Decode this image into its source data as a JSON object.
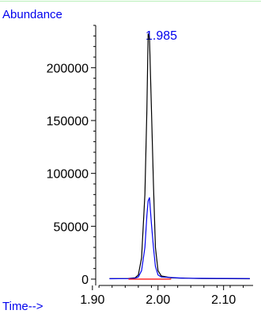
{
  "chart_data": {
    "type": "line",
    "ylabel": "Abundance",
    "xlabel": "Time-->",
    "peak_label": "1.985",
    "xlim": [
      1.905,
      2.145
    ],
    "ylim": [
      0,
      240000
    ],
    "x_ticks": [
      1.9,
      2.0,
      2.1
    ],
    "x_tick_labels": [
      "1.90",
      "2.00",
      "2.10"
    ],
    "y_ticks": [
      0,
      50000,
      100000,
      150000,
      200000
    ],
    "y_tick_labels": [
      "0",
      "50000",
      "100000",
      "150000",
      "200000"
    ],
    "x_minor_step": 0.02,
    "y_minor_step": 10000,
    "series": [
      {
        "color": "#000000",
        "points": [
          [
            1.926,
            500
          ],
          [
            1.955,
            600
          ],
          [
            1.965,
            1200
          ],
          [
            1.97,
            4000
          ],
          [
            1.975,
            20000
          ],
          [
            1.98,
            80000
          ],
          [
            1.983,
            160000
          ],
          [
            1.985,
            232000
          ],
          [
            1.987,
            228000
          ],
          [
            1.99,
            160000
          ],
          [
            1.993,
            90000
          ],
          [
            1.996,
            30000
          ],
          [
            2.0,
            8000
          ],
          [
            2.005,
            3000
          ],
          [
            2.02,
            1200
          ],
          [
            2.06,
            600
          ],
          [
            2.14,
            400
          ]
        ]
      },
      {
        "color": "#0000ee",
        "points": [
          [
            1.926,
            400
          ],
          [
            1.955,
            500
          ],
          [
            1.965,
            900
          ],
          [
            1.97,
            2000
          ],
          [
            1.975,
            8000
          ],
          [
            1.98,
            30000
          ],
          [
            1.983,
            60000
          ],
          [
            1.985,
            74000
          ],
          [
            1.987,
            77000
          ],
          [
            1.99,
            52000
          ],
          [
            1.993,
            30000
          ],
          [
            1.996,
            12000
          ],
          [
            2.0,
            4000
          ],
          [
            2.005,
            2000
          ],
          [
            2.04,
            800
          ],
          [
            2.14,
            500
          ]
        ]
      },
      {
        "color": "#ff0000",
        "points": [
          [
            1.955,
            0
          ],
          [
            2.02,
            0
          ]
        ]
      }
    ]
  },
  "colors": {
    "label_text": "#0000ee",
    "axis": "#000000",
    "top_rule": "#b9f0b9"
  }
}
